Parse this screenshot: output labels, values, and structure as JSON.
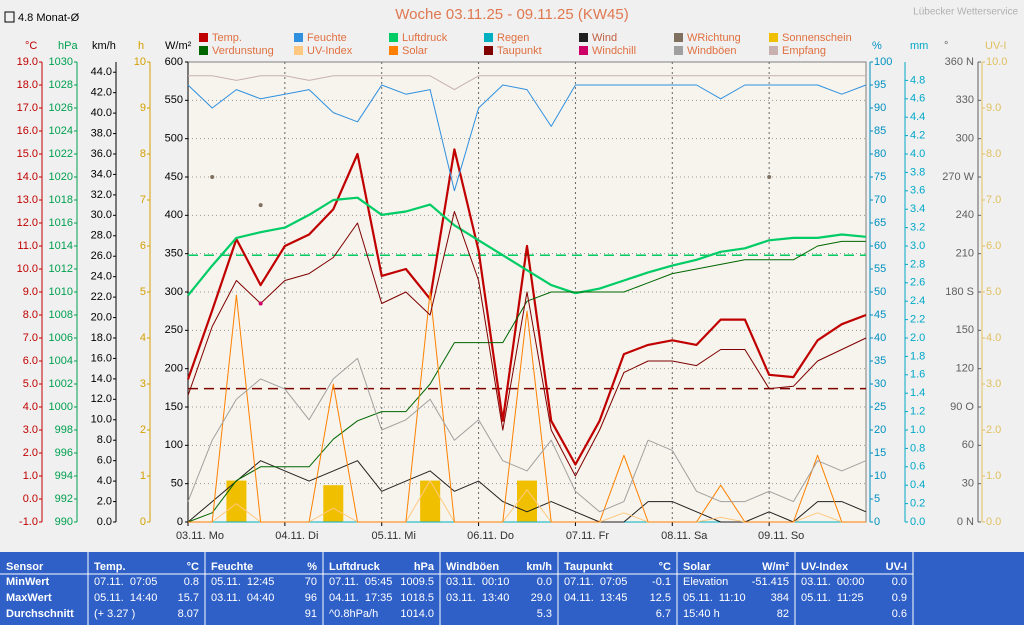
{
  "chart_data": {
    "type": "line",
    "title": "Woche 03.11.25 - 09.11.25 (KW45)",
    "source": "Lübecker Wetterservice",
    "badge": "4.8 Monat-Ø",
    "categories": [
      "03.11. Mo",
      null,
      null,
      null,
      "04.11. Di",
      null,
      null,
      null,
      "05.11. Mi",
      null,
      null,
      null,
      "06.11. Do",
      null,
      null,
      null,
      "07.11. Fr",
      null,
      null,
      null,
      "08.11. Sa",
      null,
      null,
      null,
      "09.11. So",
      null,
      null,
      null,
      null
    ],
    "grid": true,
    "axes": [
      {
        "unit": "°C",
        "color": "#c00000",
        "side": "left",
        "ylim": [
          -1,
          19
        ],
        "yticks": [
          {
            "value": -1,
            "label": "-1.0"
          },
          {
            "value": 0,
            "label": "0.0"
          },
          {
            "value": 1,
            "label": "1.0"
          },
          {
            "value": 2,
            "label": "2.0"
          },
          {
            "value": 3,
            "label": "3.0"
          },
          {
            "value": 4,
            "label": "4.0"
          },
          {
            "value": 5,
            "label": "5.0"
          },
          {
            "value": 6,
            "label": "6.0"
          },
          {
            "value": 7,
            "label": "7.0"
          },
          {
            "value": 8,
            "label": "8.0"
          },
          {
            "value": 9,
            "label": "9.0"
          },
          {
            "value": 10,
            "label": "10.0"
          },
          {
            "value": 11,
            "label": "11.0"
          },
          {
            "value": 12,
            "label": "12.0"
          },
          {
            "value": 13,
            "label": "13.0"
          },
          {
            "value": 14,
            "label": "14.0"
          },
          {
            "value": 15,
            "label": "15.0"
          },
          {
            "value": 16,
            "label": "16.0"
          },
          {
            "value": 17,
            "label": "17.0"
          },
          {
            "value": 18,
            "label": "18.0"
          },
          {
            "value": 19,
            "label": "19.0"
          }
        ]
      },
      {
        "unit": "hPa",
        "color": "#00a050",
        "side": "left",
        "ylim": [
          990,
          1030
        ],
        "yticks": [
          990,
          992,
          994,
          996,
          998,
          1000,
          1002,
          1004,
          1006,
          1008,
          1010,
          1012,
          1014,
          1016,
          1018,
          1020,
          1022,
          1024,
          1026,
          1028,
          1030
        ]
      },
      {
        "unit": "km/h",
        "color": "#000000",
        "side": "left",
        "ylim": [
          0,
          45
        ],
        "yticks": [
          {
            "value": 0,
            "label": "0.0"
          },
          {
            "value": 2,
            "label": "2.0"
          },
          {
            "value": 4,
            "label": "4.0"
          },
          {
            "value": 6,
            "label": "6.0"
          },
          {
            "value": 8,
            "label": "8.0"
          },
          {
            "value": 10,
            "label": "10.0"
          },
          {
            "value": 12,
            "label": "12.0"
          },
          {
            "value": 14,
            "label": "14.0"
          },
          {
            "value": 16,
            "label": "16.0"
          },
          {
            "value": 18,
            "label": "18.0"
          },
          {
            "value": 20,
            "label": "20.0"
          },
          {
            "value": 22,
            "label": "22.0"
          },
          {
            "value": 24,
            "label": "24.0"
          },
          {
            "value": 26,
            "label": "26.0"
          },
          {
            "value": 28,
            "label": "28.0"
          },
          {
            "value": 30,
            "label": "30.0"
          },
          {
            "value": 32,
            "label": "32.0"
          },
          {
            "value": 34,
            "label": "34.0"
          },
          {
            "value": 36,
            "label": "36.0"
          },
          {
            "value": 38,
            "label": "38.0"
          },
          {
            "value": 40,
            "label": "40.0"
          },
          {
            "value": 42,
            "label": "42.0"
          },
          {
            "value": 44,
            "label": "44.0"
          }
        ]
      },
      {
        "unit": "h",
        "color": "#d4a000",
        "side": "left",
        "ylim": [
          0,
          10
        ],
        "yticks": [
          0,
          1,
          2,
          3,
          4,
          5,
          6,
          7,
          8,
          9,
          10
        ]
      },
      {
        "unit": "W/m²",
        "color": "#000000",
        "side": "left",
        "ylim": [
          0,
          600
        ],
        "yticks": [
          0,
          50,
          100,
          150,
          200,
          250,
          300,
          350,
          400,
          450,
          500,
          550,
          600
        ]
      },
      {
        "unit": "%",
        "color": "#0090c0",
        "side": "right",
        "ylim": [
          0,
          100
        ],
        "yticks": [
          0,
          5,
          10,
          15,
          20,
          25,
          30,
          35,
          40,
          45,
          50,
          55,
          60,
          65,
          70,
          75,
          80,
          85,
          90,
          95,
          100
        ]
      },
      {
        "unit": "mm",
        "color": "#00a8c8",
        "side": "right",
        "ylim": [
          0,
          5
        ],
        "yticks": [
          {
            "value": 0,
            "label": "0.0"
          },
          0.2,
          0.4,
          0.6,
          0.8,
          {
            "value": 1,
            "label": "1.0"
          },
          1.2,
          1.4,
          1.6,
          1.8,
          {
            "value": 2,
            "label": "2.0"
          },
          2.2,
          2.4,
          2.6,
          2.8,
          {
            "value": 3,
            "label": "3.0"
          },
          3.2,
          3.4,
          3.6,
          3.8,
          {
            "value": 4,
            "label": "4.0"
          },
          4.2,
          4.4,
          4.6,
          4.8
        ]
      },
      {
        "unit": "°",
        "color": "#606060",
        "side": "right",
        "ylim": [
          0,
          360
        ],
        "yticks": [
          {
            "value": 0,
            "label": "0 N"
          },
          30,
          60,
          {
            "value": 90,
            "label": "90 O"
          },
          120,
          150,
          {
            "value": 180,
            "label": "180 S"
          },
          210,
          240,
          {
            "value": 270,
            "label": "270 W"
          },
          300,
          330,
          {
            "value": 360,
            "label": "360 N"
          }
        ]
      },
      {
        "unit": "UV-I",
        "color": "#e0c060",
        "side": "right",
        "ylim": [
          0,
          10
        ],
        "yticks": [
          {
            "value": 0,
            "label": "0.0"
          },
          {
            "value": 1,
            "label": "1.0"
          },
          {
            "value": 2,
            "label": "2.0"
          },
          {
            "value": 3,
            "label": "3.0"
          },
          {
            "value": 4,
            "label": "4.0"
          },
          {
            "value": 5,
            "label": "5.0"
          },
          {
            "value": 6,
            "label": "6.0"
          },
          {
            "value": 7,
            "label": "7.0"
          },
          {
            "value": 8,
            "label": "8.0"
          },
          {
            "value": 9,
            "label": "9.0"
          },
          {
            "value": 10,
            "label": "10.0"
          }
        ]
      }
    ],
    "reference_lines": [
      {
        "axis": 0,
        "value": 4.8,
        "color": "#800000"
      },
      {
        "axis": 1,
        "value": 1013.2,
        "color": "#00cc66"
      }
    ],
    "series": [
      {
        "name": "Temp.",
        "color": "#c00000",
        "axis": 0,
        "style": "line",
        "width": 2.2,
        "values": [
          5.2,
          8.2,
          11.3,
          9.3,
          11.0,
          11.5,
          12.6,
          15.0,
          9.7,
          10.0,
          8.7,
          15.2,
          10.8,
          3.4,
          11.0,
          3.4,
          1.5,
          3.4,
          6.3,
          6.7,
          6.9,
          6.7,
          7.8,
          7.8,
          5.4,
          5.3,
          6.9,
          7.6,
          8.0
        ]
      },
      {
        "name": "Feuchte",
        "color": "#3090e0",
        "axis": 5,
        "style": "line",
        "width": 1,
        "values": [
          95,
          90,
          94,
          92,
          93,
          94,
          89,
          87,
          95,
          93,
          94,
          72,
          90,
          95,
          94,
          86,
          95,
          95,
          95,
          95,
          95,
          95,
          92,
          95,
          95,
          95,
          95,
          93,
          95
        ]
      },
      {
        "name": "Luftdruck",
        "color": "#00cc66",
        "axis": 1,
        "style": "line",
        "width": 2.2,
        "values": [
          1009.7,
          1012.3,
          1014.7,
          1015.2,
          1015.6,
          1016.7,
          1018.0,
          1018.2,
          1016.7,
          1017.0,
          1017.6,
          1015.8,
          1014.5,
          1013.2,
          1011.9,
          1010.6,
          1009.9,
          1010.3,
          1011.0,
          1011.7,
          1012.3,
          1012.8,
          1013.5,
          1013.8,
          1014.5,
          1014.7,
          1014.7,
          1015.0,
          1014.8
        ]
      },
      {
        "name": "Regen",
        "color": "#00b0c0",
        "axis": 6,
        "style": "line",
        "width": 1,
        "values": [
          0,
          0,
          0,
          0,
          0,
          0,
          0,
          0,
          0,
          0,
          0,
          0,
          0,
          0,
          0,
          0,
          0,
          0,
          0,
          0,
          0,
          0,
          0,
          0,
          0,
          0,
          0,
          0,
          0
        ]
      },
      {
        "name": "Wind",
        "color": "#202020",
        "axis": 2,
        "style": "line",
        "width": 1,
        "values": [
          0,
          2,
          4,
          6,
          5,
          4,
          5,
          6,
          3,
          4,
          5,
          3,
          4,
          2,
          1,
          2,
          1,
          0,
          0,
          2,
          2,
          1,
          0,
          0,
          1,
          0,
          2,
          2,
          1
        ]
      },
      {
        "name": "WRichtung",
        "color": "#807060",
        "axis": 7,
        "style": "points",
        "values": [
          null,
          270,
          null,
          248,
          null,
          null,
          null,
          null,
          null,
          null,
          null,
          null,
          null,
          null,
          null,
          null,
          null,
          null,
          null,
          null,
          null,
          null,
          null,
          null,
          270,
          null,
          null,
          null,
          null
        ]
      },
      {
        "name": "Sonnenschein",
        "color": "#f0c000",
        "axis": 3,
        "style": "bars",
        "values": [
          0,
          0,
          0.9,
          0,
          0,
          0,
          0.8,
          0,
          0,
          0,
          0.9,
          0,
          0,
          0,
          0.9,
          0,
          0,
          0,
          0,
          0,
          0,
          0,
          0,
          0,
          0,
          0,
          0,
          0,
          0
        ]
      },
      {
        "name": "Verdunstung",
        "color": "#006600",
        "axis": 6,
        "style": "line",
        "width": 1,
        "values": [
          0,
          0.1,
          0.45,
          0.6,
          0.6,
          0.6,
          0.9,
          1.1,
          1.2,
          1.2,
          1.5,
          1.95,
          1.95,
          1.95,
          2.4,
          2.5,
          2.5,
          2.5,
          2.5,
          2.6,
          2.7,
          2.75,
          2.8,
          2.85,
          2.85,
          2.85,
          3.0,
          3.05,
          3.05
        ]
      },
      {
        "name": "UV-Index",
        "color": "#ffc880",
        "axis": 8,
        "style": "line",
        "width": 1,
        "values": [
          0,
          0,
          0.4,
          0,
          0,
          0,
          0.3,
          0,
          0,
          0,
          0.9,
          0,
          0,
          0,
          0.7,
          0,
          0,
          0,
          0.2,
          0,
          0,
          0,
          0.1,
          0,
          0,
          0,
          0.2,
          0,
          0
        ]
      },
      {
        "name": "Solar",
        "color": "#ff8000",
        "axis": 4,
        "style": "line",
        "width": 1,
        "values": [
          0,
          0,
          296,
          0,
          0,
          0,
          180,
          0,
          0,
          0,
          300,
          0,
          0,
          0,
          275,
          0,
          0,
          0,
          87,
          0,
          0,
          0,
          48,
          0,
          0,
          0,
          87,
          0,
          0
        ]
      },
      {
        "name": "Taupunkt",
        "color": "#800000",
        "axis": 0,
        "style": "line",
        "width": 1,
        "values": [
          4.5,
          7.5,
          9.5,
          8.5,
          9.5,
          9.8,
          10.5,
          12.0,
          8.5,
          9.0,
          8.0,
          12.5,
          9.5,
          3.0,
          9.0,
          3.0,
          1.0,
          3.0,
          5.5,
          6.0,
          6.0,
          5.8,
          6.5,
          6.5,
          4.8,
          4.9,
          6.0,
          6.5,
          7.0
        ]
      },
      {
        "name": "Windchill",
        "color": "#cc0066",
        "axis": 0,
        "style": "points",
        "values": [
          null,
          null,
          null,
          8.5,
          null,
          null,
          null,
          null,
          null,
          null,
          null,
          null,
          null,
          null,
          null,
          null,
          null,
          null,
          null,
          null,
          null,
          null,
          null,
          null,
          null,
          null,
          null,
          null,
          null
        ]
      },
      {
        "name": "Windböen",
        "color": "#a0a0a0",
        "axis": 2,
        "style": "line",
        "width": 1,
        "values": [
          2,
          8,
          12,
          14,
          13,
          10,
          14,
          16,
          9,
          10,
          12,
          8,
          10,
          6,
          5,
          8,
          3,
          1,
          2,
          8,
          7,
          3,
          2,
          2,
          3,
          2,
          6,
          5,
          6
        ]
      },
      {
        "name": "Empfang",
        "color": "#c8b0b0",
        "axis": 5,
        "style": "line",
        "width": 1,
        "values": [
          97,
          97,
          96,
          97,
          97,
          96,
          97,
          97,
          97,
          97,
          97,
          94,
          97,
          97,
          97,
          97,
          97,
          97,
          97,
          97,
          97,
          97,
          97,
          97,
          97,
          97,
          97,
          97,
          97
        ]
      }
    ]
  },
  "stats_table": {
    "header": "Sensor",
    "row_labels": [
      "MinWert",
      "MaxWert",
      "Durchschnitt"
    ],
    "columns": [
      {
        "name": "Temp.",
        "unit": "°C",
        "rows": [
          [
            "07.11.  07:05",
            "0.8"
          ],
          [
            "05.11.  14:40",
            "15.7"
          ],
          [
            "(+ 3.27 )",
            "8.07"
          ]
        ]
      },
      {
        "name": "Feuchte",
        "unit": "%",
        "rows": [
          [
            "05.11.  12:45",
            "70"
          ],
          [
            "03.11.  04:40",
            "96"
          ],
          [
            "91"
          ]
        ]
      },
      {
        "name": "Luftdruck",
        "unit": "hPa",
        "rows": [
          [
            "07.11.  05:45",
            "1009.5"
          ],
          [
            "04.11.  17:35",
            "1018.5"
          ],
          [
            "^0.8hPa/h",
            "1014.0"
          ]
        ]
      },
      {
        "name": "Windböen",
        "unit": "km/h",
        "rows": [
          [
            "03.11.  00:10",
            "0.0"
          ],
          [
            "03.11.  13:40",
            "29.0"
          ],
          [
            "5.3"
          ]
        ]
      },
      {
        "name": "Taupunkt",
        "unit": "°C",
        "rows": [
          [
            "07.11.  07:05",
            "-0.1"
          ],
          [
            "04.11.  13:45",
            "12.5"
          ],
          [
            "6.7"
          ]
        ]
      },
      {
        "name": "Solar",
        "unit": "W/m²",
        "rows": [
          [
            "Elevation",
            "-51.415"
          ],
          [
            "05.11.  11:10",
            "384"
          ],
          [
            "15:40 h",
            "82"
          ]
        ]
      },
      {
        "name": "UV-Index",
        "unit": "UV-I",
        "rows": [
          [
            "03.11.  00:00",
            "0.0"
          ],
          [
            "05.11.  11:25",
            "0.9"
          ],
          [
            "0.6"
          ]
        ]
      }
    ]
  }
}
